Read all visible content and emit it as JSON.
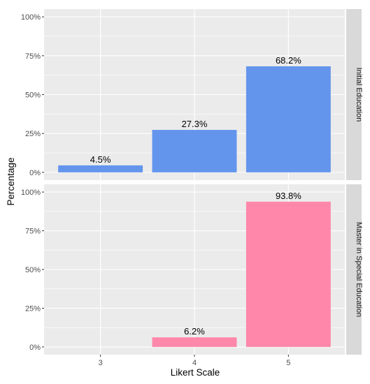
{
  "chart_data": {
    "type": "bar",
    "xlabel": "Likert Scale",
    "ylabel": "Percentage",
    "categories": [
      "3",
      "4",
      "5"
    ],
    "yticks": [
      "0%",
      "25%",
      "50%",
      "75%",
      "100%"
    ],
    "ylim": [
      0,
      100
    ],
    "grid": true,
    "facets": [
      {
        "name": "Initial Education",
        "color": "#6495ED",
        "values": [
          4.5,
          27.3,
          68.2
        ],
        "labels": [
          "4.5%",
          "27.3%",
          "68.2%"
        ]
      },
      {
        "name": "Master in Special Education",
        "color": "#FF88AA",
        "values": [
          0,
          6.2,
          93.8
        ],
        "labels": [
          "",
          "6.2%",
          "93.8%"
        ]
      }
    ]
  },
  "colors": {
    "panel_bg": "#EBEBEB",
    "strip_bg": "#D9D9D9",
    "grid": "#FFFFFF"
  }
}
